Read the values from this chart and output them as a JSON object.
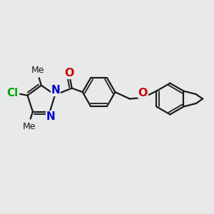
{
  "bg_color": "#e8eaea",
  "bond_color": "#1a1a1a",
  "bond_width": 1.6,
  "N_color": "#0000cc",
  "O_color": "#cc0000",
  "Cl_color": "#00aa00",
  "font_size": 9.5,
  "fig_width": 3.0,
  "fig_height": 3.0,
  "xlim": [
    0,
    12
  ],
  "ylim": [
    0,
    10
  ]
}
